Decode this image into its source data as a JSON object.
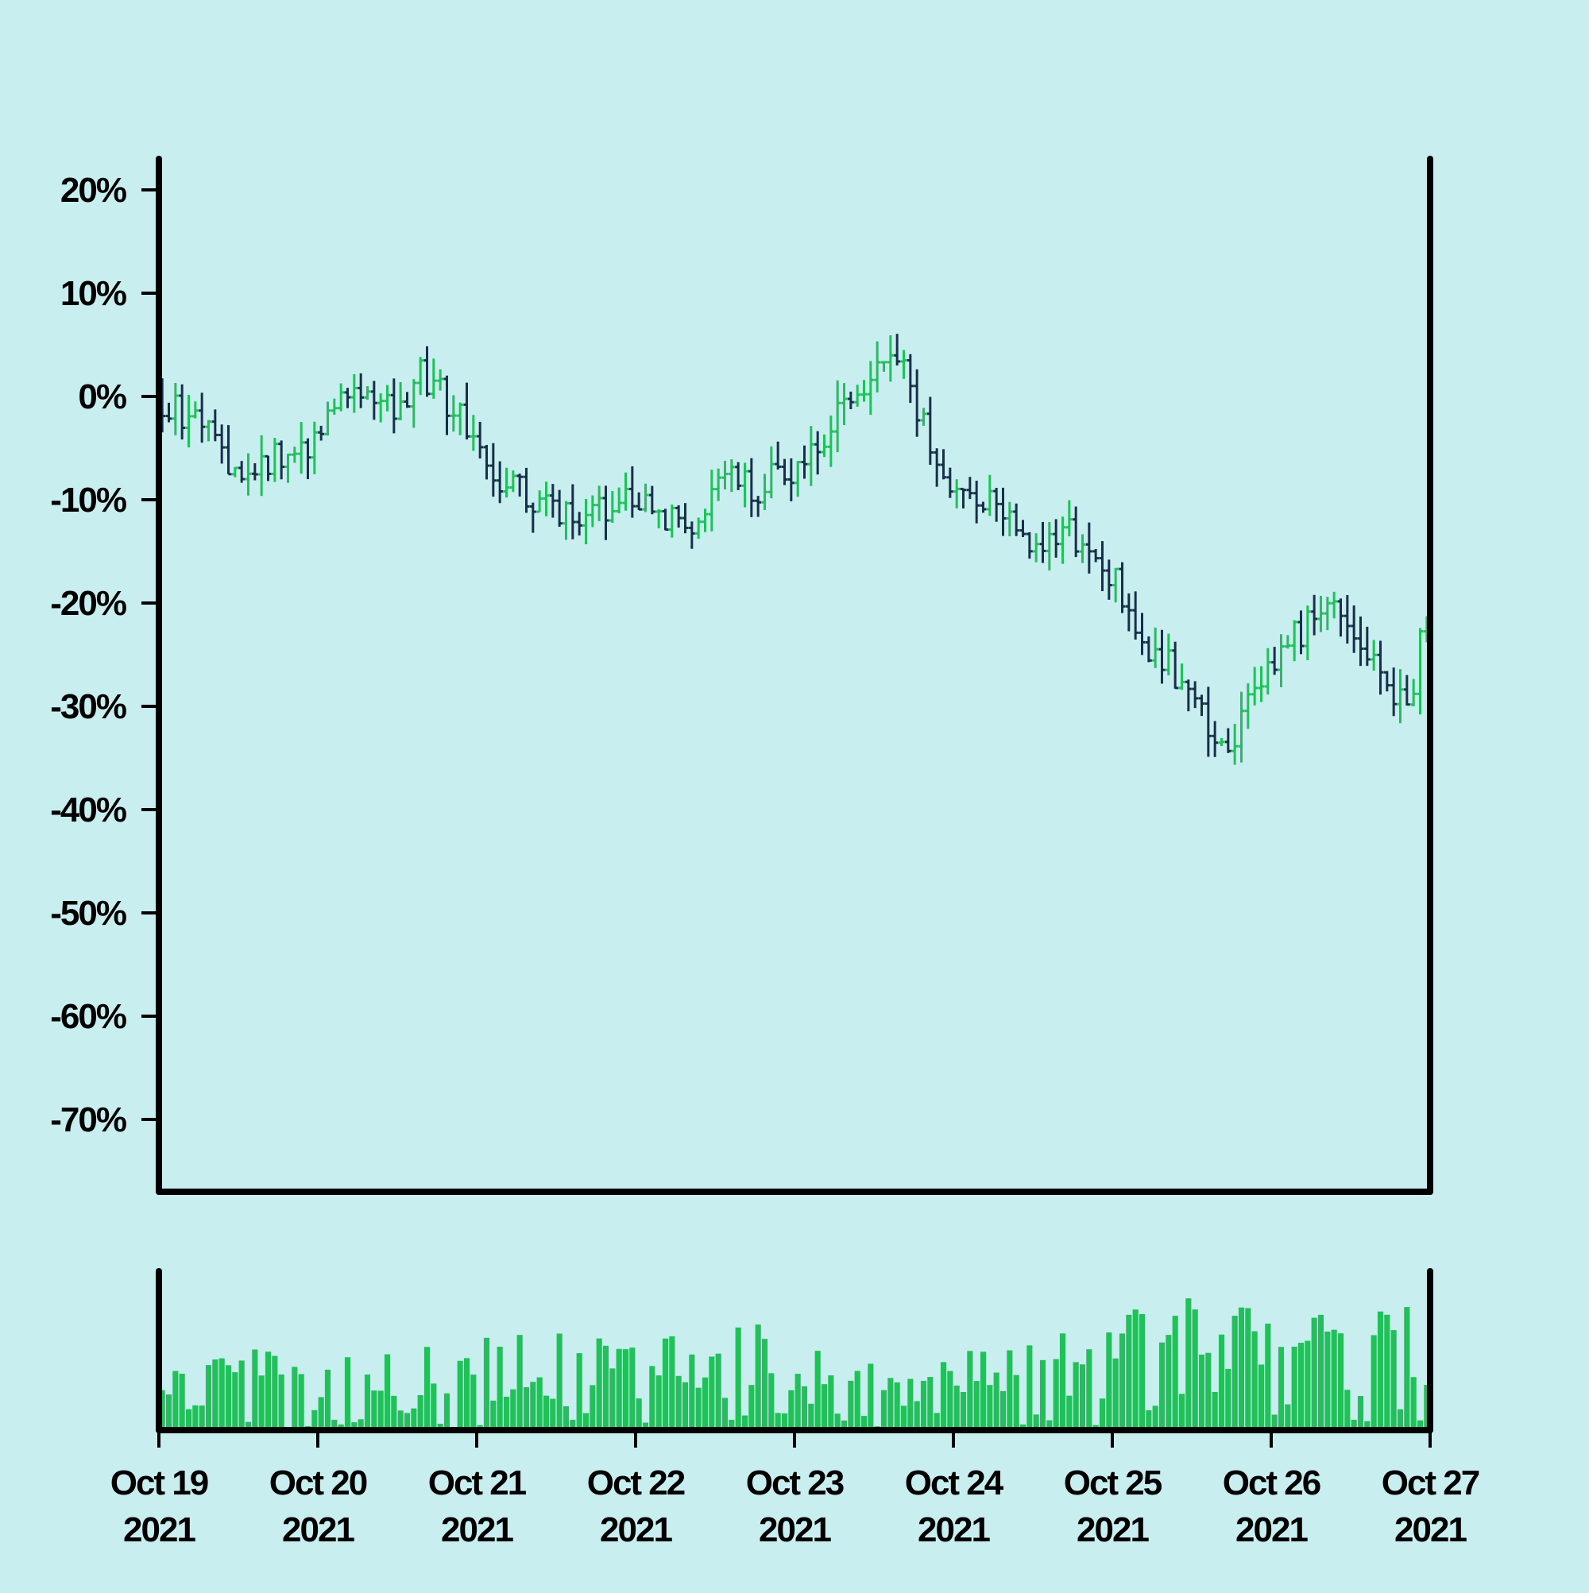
{
  "chart_data": {
    "type": "ohlc",
    "title": "",
    "xlabel": "",
    "ylabel": "",
    "y_unit": "%",
    "ylim": [
      -77,
      23
    ],
    "y_ticks": [
      20,
      10,
      0,
      -10,
      -20,
      -30,
      -40,
      -50,
      -60,
      -70
    ],
    "y_tick_labels": [
      "20%",
      "10%",
      "0%",
      "-10%",
      "-20%",
      "-30%",
      "-40%",
      "-50%",
      "-60%",
      "-70%"
    ],
    "x_start": "2021-10-19",
    "x_end": "2021-10-27",
    "x_ticks": [
      "2021-10-19",
      "2021-10-20",
      "2021-10-21",
      "2021-10-22",
      "2021-10-23",
      "2021-10-24",
      "2021-10-25",
      "2021-10-26",
      "2021-10-27"
    ],
    "x_tick_labels": [
      [
        "Oct 19",
        "2021"
      ],
      [
        "Oct 20",
        "2021"
      ],
      [
        "Oct 21",
        "2021"
      ],
      [
        "Oct 22",
        "2021"
      ],
      [
        "Oct 23",
        "2021"
      ],
      [
        "Oct 24",
        "2021"
      ],
      [
        "Oct 25",
        "2021"
      ],
      [
        "Oct 26",
        "2021"
      ],
      [
        "Oct 27",
        "2021"
      ]
    ],
    "candle_interval_hours": 1,
    "close_path": [
      [
        "2021-10-19 00:00",
        0
      ],
      [
        "2021-10-19 04:00",
        -2
      ],
      [
        "2021-10-19 09:00",
        -4
      ],
      [
        "2021-10-19 13:00",
        -9
      ],
      [
        "2021-10-19 18:00",
        -6
      ],
      [
        "2021-10-20 00:00",
        -4
      ],
      [
        "2021-10-20 05:00",
        1
      ],
      [
        "2021-10-20 09:00",
        0
      ],
      [
        "2021-10-20 13:00",
        -1
      ],
      [
        "2021-10-20 16:00",
        2
      ],
      [
        "2021-10-20 21:00",
        -1
      ],
      [
        "2021-10-21 02:00",
        -7
      ],
      [
        "2021-10-21 06:00",
        -9
      ],
      [
        "2021-10-21 12:00",
        -11
      ],
      [
        "2021-10-21 18:00",
        -11
      ],
      [
        "2021-10-22 00:00",
        -10
      ],
      [
        "2021-10-22 04:00",
        -11
      ],
      [
        "2021-10-22 09:00",
        -13
      ],
      [
        "2021-10-22 13:00",
        -8
      ],
      [
        "2021-10-22 18:00",
        -9
      ],
      [
        "2021-10-23 00:00",
        -7
      ],
      [
        "2021-10-23 06:00",
        -3
      ],
      [
        "2021-10-23 12:00",
        2
      ],
      [
        "2021-10-23 17:00",
        3
      ],
      [
        "2021-10-23 22:00",
        -7
      ],
      [
        "2021-10-24 05:00",
        -10
      ],
      [
        "2021-10-24 11:00",
        -14
      ],
      [
        "2021-10-24 18:00",
        -13
      ],
      [
        "2021-10-25 00:00",
        -17
      ],
      [
        "2021-10-25 06:00",
        -24
      ],
      [
        "2021-10-25 12:00",
        -28
      ],
      [
        "2021-10-25 17:00",
        -35
      ],
      [
        "2021-10-26 00:00",
        -26
      ],
      [
        "2021-10-26 06:00",
        -22
      ],
      [
        "2021-10-26 11:00",
        -20
      ],
      [
        "2021-10-26 18:00",
        -27
      ],
      [
        "2021-10-26 21:00",
        -31
      ],
      [
        "2021-10-27 00:00",
        -21
      ]
    ],
    "volume_profile": [
      [
        "2021-10-19 00:00",
        0.2
      ],
      [
        "2021-10-19 12:00",
        0.3
      ],
      [
        "2021-10-20 00:00",
        0.25
      ],
      [
        "2021-10-20 12:00",
        0.3
      ],
      [
        "2021-10-21 00:00",
        0.35
      ],
      [
        "2021-10-21 12:00",
        0.38
      ],
      [
        "2021-10-22 00:00",
        0.35
      ],
      [
        "2021-10-22 12:00",
        0.38
      ],
      [
        "2021-10-23 00:00",
        0.4
      ],
      [
        "2021-10-23 12:00",
        0.25
      ],
      [
        "2021-10-24 00:00",
        0.28
      ],
      [
        "2021-10-24 12:00",
        0.38
      ],
      [
        "2021-10-25 00:00",
        0.42
      ],
      [
        "2021-10-25 12:00",
        0.55
      ],
      [
        "2021-10-26 00:00",
        0.5
      ],
      [
        "2021-10-26 12:00",
        0.45
      ],
      [
        "2021-10-27 00:00",
        0.55
      ]
    ],
    "colors": {
      "background": "#c8eeef",
      "up": "#22c05a",
      "down": "#17304a",
      "volume": "#22c05a",
      "axis": "#000000"
    },
    "grid": false,
    "legend": "none"
  }
}
